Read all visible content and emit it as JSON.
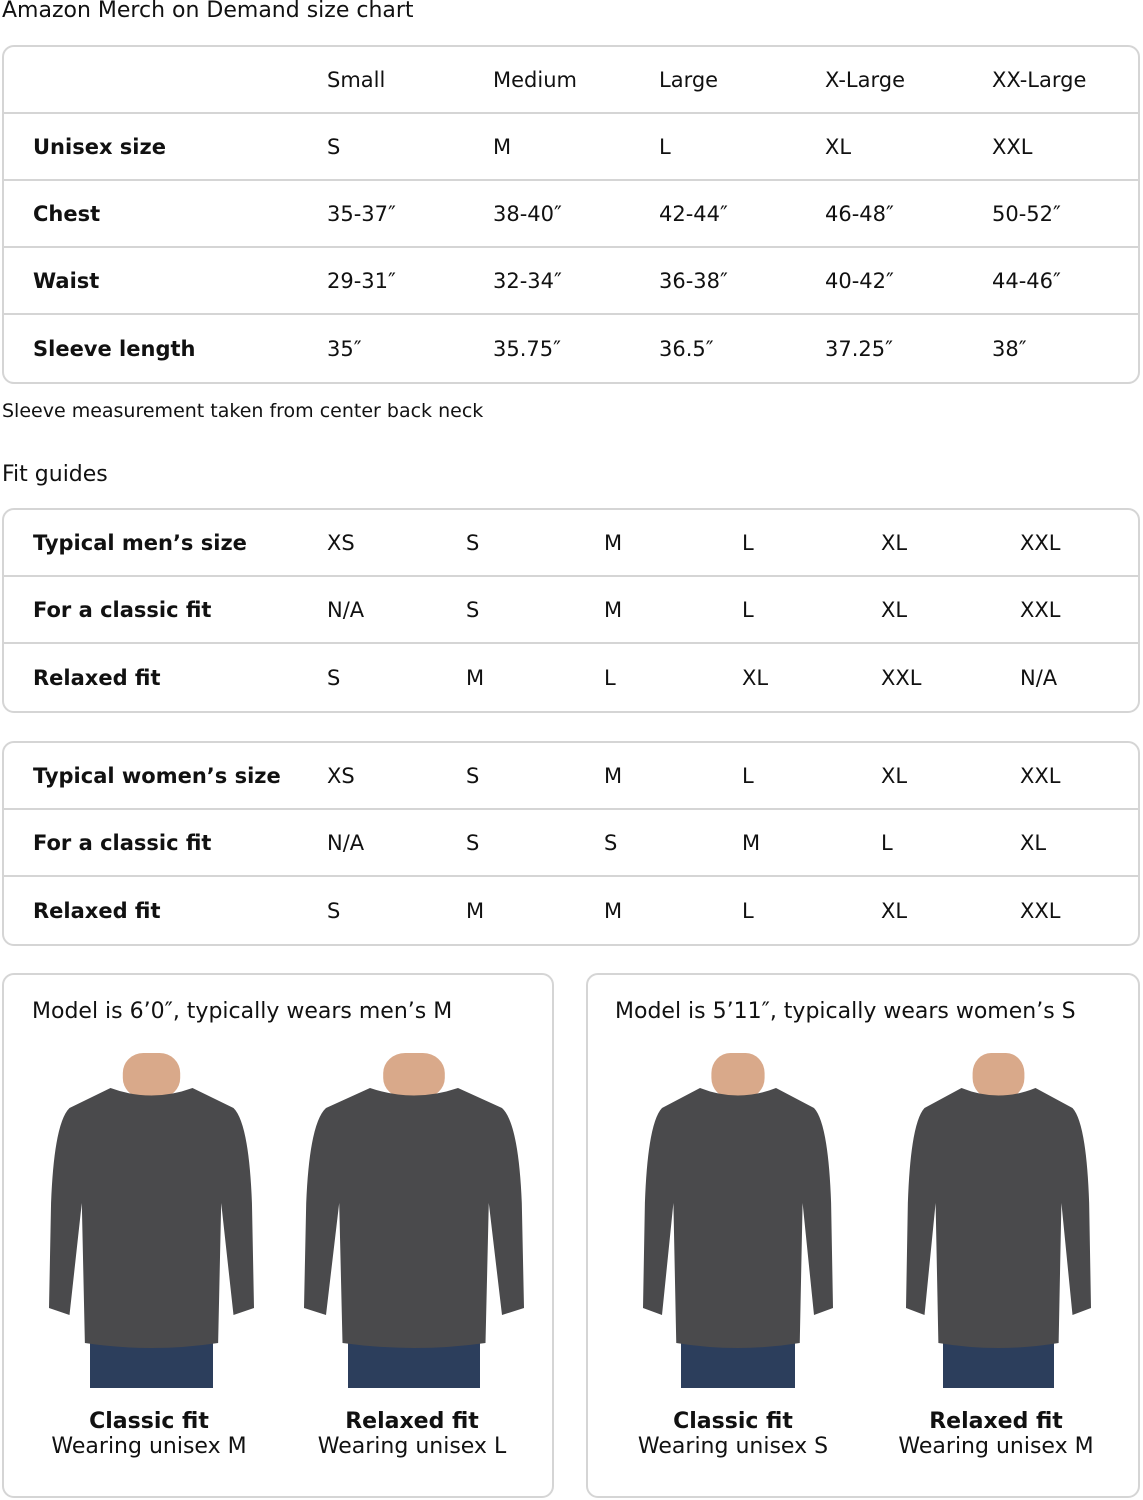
{
  "title": "Amazon Merch on Demand size chart",
  "size_chart": {
    "headers": [
      "",
      "Small",
      "Medium",
      "Large",
      "X-Large",
      "XX-Large"
    ],
    "rows": [
      {
        "label": "Unisex size",
        "values": [
          "S",
          "M",
          "L",
          "XL",
          "XXL"
        ]
      },
      {
        "label": "Chest",
        "values": [
          "35-37″",
          "38-40″",
          "42-44″",
          "46-48″",
          "50-52″"
        ]
      },
      {
        "label": "Waist",
        "values": [
          "29-31″",
          "32-34″",
          "36-38″",
          "40-42″",
          "44-46″"
        ]
      },
      {
        "label": "Sleeve length",
        "values": [
          "35″",
          "35.75″",
          "36.5″",
          "37.25″",
          "38″"
        ]
      }
    ]
  },
  "note": "Sleeve measurement taken from center back neck",
  "fit_guides_title": "Fit guides",
  "mens": [
    {
      "label": "Typical men’s size",
      "values": [
        "XS",
        "S",
        "M",
        "L",
        "XL",
        "XXL"
      ]
    },
    {
      "label": "For a classic fit",
      "values": [
        "N/A",
        "S",
        "M",
        "L",
        "XL",
        "XXL"
      ]
    },
    {
      "label": "Relaxed fit",
      "values": [
        "S",
        "M",
        "L",
        "XL",
        "XXL",
        "N/A"
      ]
    }
  ],
  "womens": [
    {
      "label": "Typical women’s size",
      "values": [
        "XS",
        "S",
        "M",
        "L",
        "XL",
        "XXL"
      ]
    },
    {
      "label": "For a classic fit",
      "values": [
        "N/A",
        "S",
        "S",
        "M",
        "L",
        "XL"
      ]
    },
    {
      "label": "Relaxed fit",
      "values": [
        "S",
        "M",
        "M",
        "L",
        "XL",
        "XXL"
      ]
    }
  ],
  "cards": [
    {
      "heading": "Model is 6’0″, typically wears men’s M",
      "photos": [
        {
          "fit": "Classic fit",
          "wearing": "Wearing unisex M"
        },
        {
          "fit": "Relaxed fit",
          "wearing": "Wearing unisex L"
        }
      ]
    },
    {
      "heading": "Model is 5’11″, typically wears women’s S",
      "photos": [
        {
          "fit": "Classic fit",
          "wearing": "Wearing unisex S"
        },
        {
          "fit": "Relaxed fit",
          "wearing": "Wearing unisex M"
        }
      ]
    }
  ],
  "colors": {
    "border": "#d5d5d5",
    "sweatshirt": "#4a4a4c",
    "jeans": "#2c3e5c",
    "skin": "#d9a98a"
  }
}
